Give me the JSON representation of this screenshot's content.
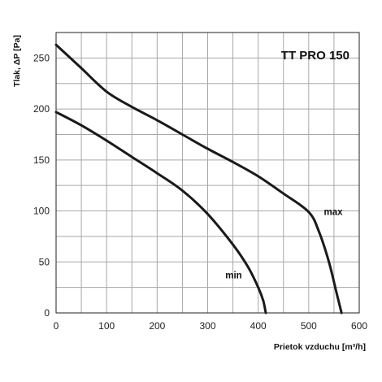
{
  "chart_data": {
    "type": "line",
    "title": "TT PRO 150",
    "xlabel": "Prietok vzduchu  [m³/h]",
    "ylabel": "Tlak, ΔP [Pa]",
    "xlim": [
      0,
      600
    ],
    "ylim": [
      0,
      275
    ],
    "x_ticks": [
      0,
      100,
      200,
      300,
      400,
      500,
      600
    ],
    "y_ticks": [
      0,
      50,
      100,
      150,
      200,
      250
    ],
    "x_ticks_labels": [
      "0",
      "100",
      "200",
      "300",
      "400",
      "500",
      "600"
    ],
    "y_ticks_labels": [
      "0",
      "50",
      "100",
      "150",
      "200",
      "250"
    ],
    "grid": true,
    "minor_grid_step_x": 50,
    "minor_grid_step_y": 25,
    "series": [
      {
        "name": "max",
        "x": [
          0,
          50,
          100,
          150,
          200,
          250,
          300,
          350,
          400,
          450,
          500,
          520,
          540,
          555,
          565
        ],
        "y": [
          263,
          240,
          217,
          202,
          189,
          175,
          161,
          148,
          134,
          117,
          99,
          80,
          50,
          20,
          0
        ]
      },
      {
        "name": "min",
        "x": [
          0,
          50,
          100,
          150,
          200,
          250,
          300,
          350,
          380,
          400,
          410,
          415
        ],
        "y": [
          197,
          184,
          169,
          153,
          137,
          120,
          97,
          67,
          45,
          25,
          12,
          0
        ]
      }
    ],
    "series_label_positions": [
      {
        "name": "max",
        "x": 530,
        "y": 100
      },
      {
        "name": "min",
        "x": 335,
        "y": 38
      }
    ],
    "colors": {
      "line": "#1a1a1a",
      "grid": "#a8a8a8",
      "frame": "#222222"
    }
  }
}
